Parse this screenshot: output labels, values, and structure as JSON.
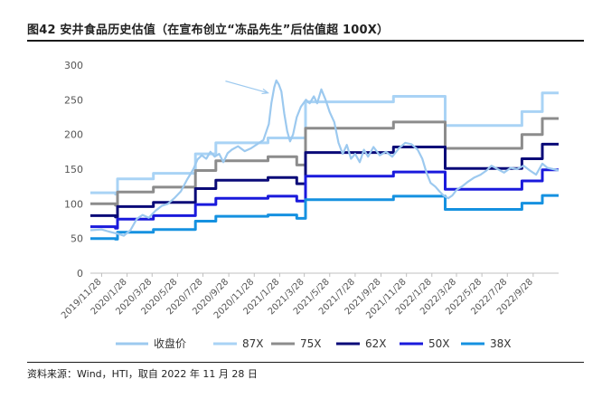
{
  "header": {
    "title": "图42 安井食品历史估值（在宣布创立“冻品先生”后估值超 100X）"
  },
  "footer": {
    "source": "资料来源：Wind，HTI，取自 2022 年 11 月 28 日"
  },
  "colors": {
    "price": "#9cc9ef",
    "pe87": "#a9d3f5",
    "pe75": "#8c8c8c",
    "pe62": "#0a0a78",
    "pe50": "#1a1adc",
    "pe38": "#1591e0",
    "arrow": "#9cc9ef"
  },
  "chart_data": {
    "type": "line",
    "title": "",
    "xlabel": "",
    "ylabel": "",
    "ylim": [
      0,
      300
    ],
    "yticks": [
      0,
      50,
      100,
      150,
      200,
      250,
      300
    ],
    "xlim": [
      "2019-11-01",
      "2022-11-28"
    ],
    "xticks": [
      "2019/11/28",
      "2020/1/28",
      "2020/3/28",
      "2020/5/28",
      "2020/7/28",
      "2020/9/28",
      "2020/11/28",
      "2021/1/28",
      "2021/3/28",
      "2021/5/28",
      "2021/7/28",
      "2021/9/28",
      "2021/11/28",
      "2022/1/28",
      "2022/3/28",
      "2022/5/28",
      "2022/7/28",
      "2022/9/28"
    ],
    "legend_position": "bottom",
    "grid": false,
    "series": [
      {
        "name": "收盘价",
        "key": "price",
        "width": 2.2,
        "points": [
          [
            "2019-11-01",
            62
          ],
          [
            "2019-11-28",
            63
          ],
          [
            "2019-12-15",
            60
          ],
          [
            "2020-01-05",
            57
          ],
          [
            "2020-01-20",
            54
          ],
          [
            "2020-02-05",
            62
          ],
          [
            "2020-02-20",
            78
          ],
          [
            "2020-03-05",
            84
          ],
          [
            "2020-03-20",
            80
          ],
          [
            "2020-04-05",
            90
          ],
          [
            "2020-04-20",
            97
          ],
          [
            "2020-05-05",
            100
          ],
          [
            "2020-05-20",
            108
          ],
          [
            "2020-06-05",
            118
          ],
          [
            "2020-06-20",
            135
          ],
          [
            "2020-07-05",
            150
          ],
          [
            "2020-07-15",
            164
          ],
          [
            "2020-07-25",
            170
          ],
          [
            "2020-08-05",
            165
          ],
          [
            "2020-08-15",
            175
          ],
          [
            "2020-08-25",
            168
          ],
          [
            "2020-09-05",
            172
          ],
          [
            "2020-09-15",
            160
          ],
          [
            "2020-09-25",
            173
          ],
          [
            "2020-10-05",
            178
          ],
          [
            "2020-10-20",
            183
          ],
          [
            "2020-11-05",
            176
          ],
          [
            "2020-11-20",
            180
          ],
          [
            "2020-12-05",
            186
          ],
          [
            "2020-12-20",
            192
          ],
          [
            "2021-01-02",
            215
          ],
          [
            "2021-01-08",
            245
          ],
          [
            "2021-01-15",
            268
          ],
          [
            "2021-01-20",
            278
          ],
          [
            "2021-01-26",
            272
          ],
          [
            "2021-02-01",
            262
          ],
          [
            "2021-02-08",
            230
          ],
          [
            "2021-02-15",
            205
          ],
          [
            "2021-02-22",
            190
          ],
          [
            "2021-03-01",
            200
          ],
          [
            "2021-03-10",
            225
          ],
          [
            "2021-03-20",
            240
          ],
          [
            "2021-04-01",
            250
          ],
          [
            "2021-04-10",
            245
          ],
          [
            "2021-04-20",
            255
          ],
          [
            "2021-04-28",
            245
          ],
          [
            "2021-05-08",
            265
          ],
          [
            "2021-05-18",
            250
          ],
          [
            "2021-05-28",
            232
          ],
          [
            "2021-06-08",
            218
          ],
          [
            "2021-06-18",
            188
          ],
          [
            "2021-06-28",
            172
          ],
          [
            "2021-07-08",
            185
          ],
          [
            "2021-07-18",
            165
          ],
          [
            "2021-07-28",
            172
          ],
          [
            "2021-08-08",
            160
          ],
          [
            "2021-08-18",
            178
          ],
          [
            "2021-08-28",
            168
          ],
          [
            "2021-09-10",
            182
          ],
          [
            "2021-09-25",
            170
          ],
          [
            "2021-10-10",
            175
          ],
          [
            "2021-10-25",
            168
          ],
          [
            "2021-11-10",
            180
          ],
          [
            "2021-11-25",
            188
          ],
          [
            "2021-12-10",
            186
          ],
          [
            "2021-12-25",
            178
          ],
          [
            "2022-01-05",
            165
          ],
          [
            "2022-01-15",
            145
          ],
          [
            "2022-01-25",
            130
          ],
          [
            "2022-02-05",
            125
          ],
          [
            "2022-02-15",
            118
          ],
          [
            "2022-02-25",
            112
          ],
          [
            "2022-03-08",
            108
          ],
          [
            "2022-03-18",
            112
          ],
          [
            "2022-03-28",
            120
          ],
          [
            "2022-04-10",
            125
          ],
          [
            "2022-04-25",
            132
          ],
          [
            "2022-05-10",
            138
          ],
          [
            "2022-05-25",
            142
          ],
          [
            "2022-06-08",
            148
          ],
          [
            "2022-06-20",
            155
          ],
          [
            "2022-07-05",
            150
          ],
          [
            "2022-07-20",
            145
          ],
          [
            "2022-08-05",
            152
          ],
          [
            "2022-08-20",
            150
          ],
          [
            "2022-09-05",
            155
          ],
          [
            "2022-09-20",
            148
          ],
          [
            "2022-10-05",
            142
          ],
          [
            "2022-10-20",
            158
          ],
          [
            "2022-11-01",
            152
          ],
          [
            "2022-11-15",
            150
          ],
          [
            "2022-11-28",
            148
          ]
        ]
      },
      {
        "name": "87X",
        "key": "pe87",
        "width": 3,
        "points": [
          [
            "2019-11-01",
            116
          ],
          [
            "2019-12-31",
            116
          ],
          [
            "2019-12-31",
            114
          ],
          [
            "2020-01-05",
            114
          ],
          [
            "2020-01-05",
            136
          ],
          [
            "2020-03-31",
            136
          ],
          [
            "2020-03-31",
            144
          ],
          [
            "2020-07-10",
            144
          ],
          [
            "2020-07-10",
            172
          ],
          [
            "2020-08-28",
            172
          ],
          [
            "2020-08-28",
            188
          ],
          [
            "2020-12-31",
            188
          ],
          [
            "2020-12-31",
            195
          ],
          [
            "2021-03-31",
            195
          ],
          [
            "2021-03-31",
            247
          ],
          [
            "2021-10-28",
            247
          ],
          [
            "2021-10-28",
            255
          ],
          [
            "2022-03-01",
            255
          ],
          [
            "2022-03-01",
            213
          ],
          [
            "2022-09-01",
            213
          ],
          [
            "2022-09-01",
            233
          ],
          [
            "2022-10-20",
            233
          ],
          [
            "2022-10-20",
            260
          ],
          [
            "2022-11-28",
            260
          ]
        ]
      },
      {
        "name": "75X",
        "key": "pe75",
        "width": 3,
        "points": [
          [
            "2019-11-01",
            100
          ],
          [
            "2019-12-31",
            100
          ],
          [
            "2019-12-31",
            98
          ],
          [
            "2020-01-05",
            98
          ],
          [
            "2020-01-05",
            117
          ],
          [
            "2020-03-31",
            117
          ],
          [
            "2020-03-31",
            124
          ],
          [
            "2020-07-10",
            124
          ],
          [
            "2020-07-10",
            148
          ],
          [
            "2020-08-28",
            148
          ],
          [
            "2020-08-28",
            162
          ],
          [
            "2020-12-31",
            162
          ],
          [
            "2020-12-31",
            168
          ],
          [
            "2021-03-10",
            168
          ],
          [
            "2021-03-10",
            156
          ],
          [
            "2021-03-31",
            156
          ],
          [
            "2021-03-31",
            209
          ],
          [
            "2021-10-28",
            209
          ],
          [
            "2021-10-28",
            218
          ],
          [
            "2022-03-01",
            218
          ],
          [
            "2022-03-01",
            180
          ],
          [
            "2022-09-01",
            180
          ],
          [
            "2022-09-01",
            200
          ],
          [
            "2022-10-20",
            200
          ],
          [
            "2022-10-20",
            223
          ],
          [
            "2022-11-28",
            223
          ]
        ]
      },
      {
        "name": "62X",
        "key": "pe62",
        "width": 3,
        "points": [
          [
            "2019-11-01",
            83
          ],
          [
            "2019-12-31",
            83
          ],
          [
            "2019-12-31",
            81
          ],
          [
            "2020-01-05",
            81
          ],
          [
            "2020-01-05",
            96
          ],
          [
            "2020-03-31",
            96
          ],
          [
            "2020-03-31",
            102
          ],
          [
            "2020-07-10",
            102
          ],
          [
            "2020-07-10",
            122
          ],
          [
            "2020-08-28",
            122
          ],
          [
            "2020-08-28",
            134
          ],
          [
            "2020-12-31",
            134
          ],
          [
            "2020-12-31",
            138
          ],
          [
            "2021-03-10",
            138
          ],
          [
            "2021-03-10",
            129
          ],
          [
            "2021-03-31",
            129
          ],
          [
            "2021-03-31",
            174
          ],
          [
            "2021-10-28",
            174
          ],
          [
            "2021-10-28",
            182
          ],
          [
            "2022-03-01",
            182
          ],
          [
            "2022-03-01",
            151
          ],
          [
            "2022-09-01",
            151
          ],
          [
            "2022-09-01",
            165
          ],
          [
            "2022-10-20",
            165
          ],
          [
            "2022-10-20",
            186
          ],
          [
            "2022-11-28",
            186
          ]
        ]
      },
      {
        "name": "50X",
        "key": "pe50",
        "width": 3,
        "points": [
          [
            "2019-11-01",
            67
          ],
          [
            "2019-12-31",
            67
          ],
          [
            "2019-12-31",
            65
          ],
          [
            "2020-01-05",
            65
          ],
          [
            "2020-01-05",
            78
          ],
          [
            "2020-03-31",
            78
          ],
          [
            "2020-03-31",
            83
          ],
          [
            "2020-07-10",
            83
          ],
          [
            "2020-07-10",
            99
          ],
          [
            "2020-08-28",
            99
          ],
          [
            "2020-08-28",
            108
          ],
          [
            "2020-12-31",
            108
          ],
          [
            "2020-12-31",
            111
          ],
          [
            "2021-03-10",
            111
          ],
          [
            "2021-03-10",
            104
          ],
          [
            "2021-03-31",
            104
          ],
          [
            "2021-03-31",
            140
          ],
          [
            "2021-10-28",
            140
          ],
          [
            "2021-10-28",
            146
          ],
          [
            "2022-03-01",
            146
          ],
          [
            "2022-03-01",
            121
          ],
          [
            "2022-09-01",
            121
          ],
          [
            "2022-09-01",
            133
          ],
          [
            "2022-10-20",
            133
          ],
          [
            "2022-10-20",
            149
          ],
          [
            "2022-11-28",
            149
          ]
        ]
      },
      {
        "name": "38X",
        "key": "pe38",
        "width": 3,
        "points": [
          [
            "2019-11-01",
            50
          ],
          [
            "2019-12-31",
            50
          ],
          [
            "2019-12-31",
            49
          ],
          [
            "2020-01-05",
            49
          ],
          [
            "2020-01-05",
            59
          ],
          [
            "2020-03-31",
            59
          ],
          [
            "2020-03-31",
            63
          ],
          [
            "2020-07-10",
            63
          ],
          [
            "2020-07-10",
            75
          ],
          [
            "2020-08-28",
            75
          ],
          [
            "2020-08-28",
            82
          ],
          [
            "2020-12-31",
            82
          ],
          [
            "2020-12-31",
            84
          ],
          [
            "2021-03-10",
            84
          ],
          [
            "2021-03-10",
            79
          ],
          [
            "2021-03-31",
            79
          ],
          [
            "2021-03-31",
            106
          ],
          [
            "2021-10-28",
            106
          ],
          [
            "2021-10-28",
            111
          ],
          [
            "2022-03-01",
            111
          ],
          [
            "2022-03-01",
            92
          ],
          [
            "2022-09-01",
            92
          ],
          [
            "2022-09-01",
            101
          ],
          [
            "2022-10-20",
            101
          ],
          [
            "2022-10-20",
            112
          ],
          [
            "2022-11-28",
            112
          ]
        ]
      }
    ],
    "annotation": {
      "type": "arrow",
      "from": [
        "2020-09-20",
        277
      ],
      "to": [
        "2020-12-31",
        260
      ]
    }
  }
}
